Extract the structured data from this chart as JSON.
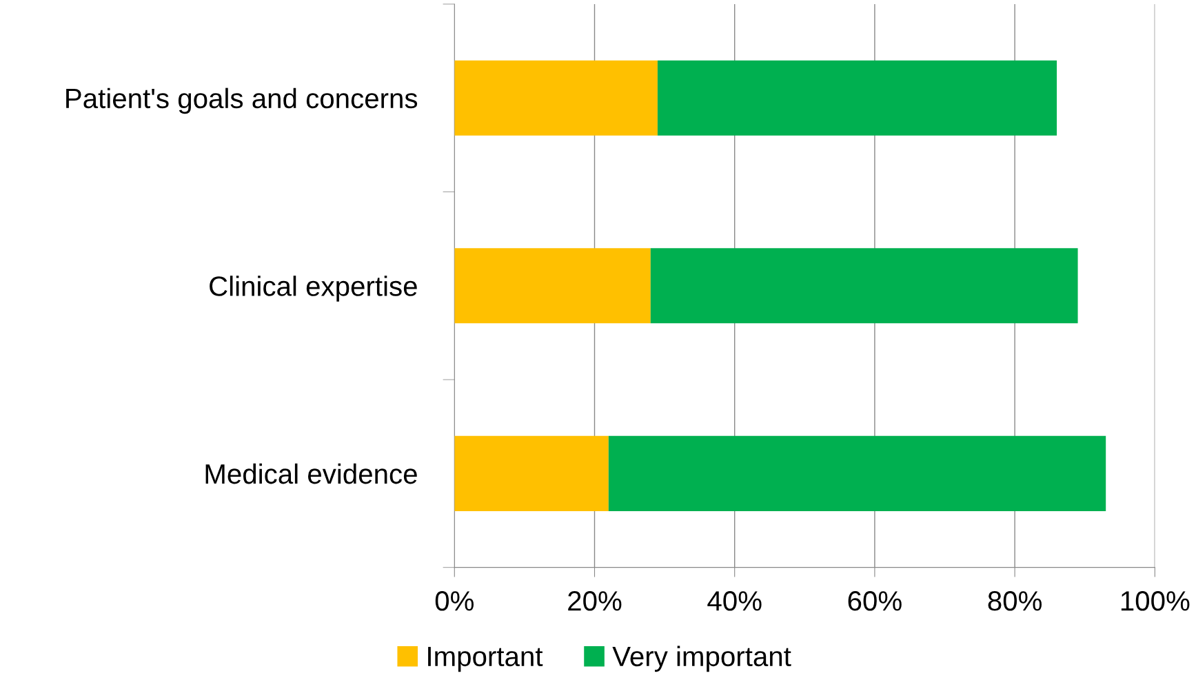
{
  "chart_data": {
    "type": "bar",
    "orientation": "horizontal",
    "stacked": true,
    "categories": [
      "Patient's goals and concerns",
      "Clinical expertise",
      "Medical evidence"
    ],
    "series": [
      {
        "name": "Important",
        "color": "#ffc000",
        "values": [
          29,
          28,
          22
        ]
      },
      {
        "name": "Very important",
        "color": "#00b050",
        "values": [
          57,
          61,
          71
        ]
      }
    ],
    "xlim": [
      0,
      100
    ],
    "xticks": [
      {
        "value": 0,
        "label": "0%"
      },
      {
        "value": 20,
        "label": "20%"
      },
      {
        "value": 40,
        "label": "40%"
      },
      {
        "value": 60,
        "label": "60%"
      },
      {
        "value": 80,
        "label": "80%"
      },
      {
        "value": 100,
        "label": "100%"
      }
    ],
    "grid": "x",
    "legend": "bottom"
  }
}
